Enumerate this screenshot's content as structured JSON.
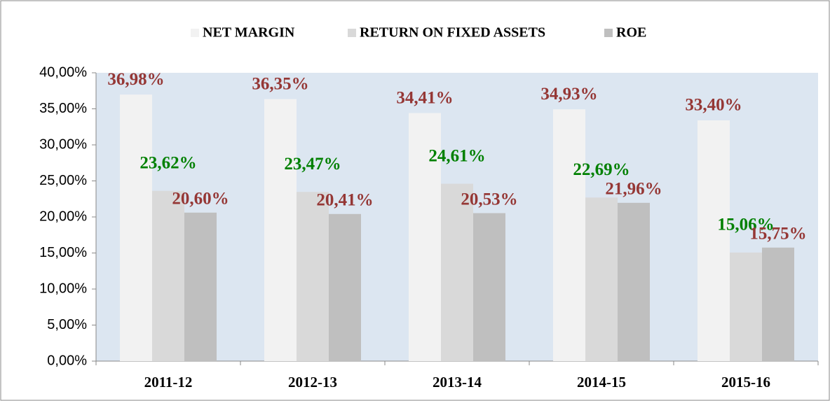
{
  "chart_data": {
    "type": "bar",
    "categories": [
      "2011-12",
      "2012-13",
      "2013-14",
      "2014-15",
      "2015-16"
    ],
    "series": [
      {
        "name": "NET MARGIN",
        "color": "#f2f2f2",
        "label_color": "#953735",
        "values": [
          36.98,
          36.35,
          34.41,
          34.93,
          33.4
        ],
        "value_labels": [
          "36,98%",
          "36,35%",
          "34,41%",
          "34,93%",
          "33,40%"
        ]
      },
      {
        "name": "RETURN ON FIXED ASSETS",
        "color": "#d9d9d9",
        "label_color": "#008000",
        "values": [
          23.62,
          23.47,
          24.61,
          22.69,
          15.06
        ],
        "value_labels": [
          "23,62%",
          "23,47%",
          "24,61%",
          "22,69%",
          "15,06%"
        ]
      },
      {
        "name": "ROE",
        "color": "#bfbfbf",
        "label_color": "#953735",
        "values": [
          20.6,
          20.41,
          20.53,
          21.96,
          15.75
        ],
        "value_labels": [
          "20,60%",
          "20,41%",
          "20,53%",
          "21,96%",
          "15,75%"
        ]
      }
    ],
    "ylim": [
      0,
      40
    ],
    "yticks": [
      {
        "value": 0,
        "label": "0,00%"
      },
      {
        "value": 5,
        "label": "5,00%"
      },
      {
        "value": 10,
        "label": "10,00%"
      },
      {
        "value": 15,
        "label": "15,00%"
      },
      {
        "value": 20,
        "label": "20,00%"
      },
      {
        "value": 25,
        "label": "25,00%"
      },
      {
        "value": 30,
        "label": "30,00%"
      },
      {
        "value": 35,
        "label": "35,00%"
      },
      {
        "value": 40,
        "label": "40,00%"
      }
    ],
    "legend": "top",
    "plot_background": "#dce6f1"
  }
}
